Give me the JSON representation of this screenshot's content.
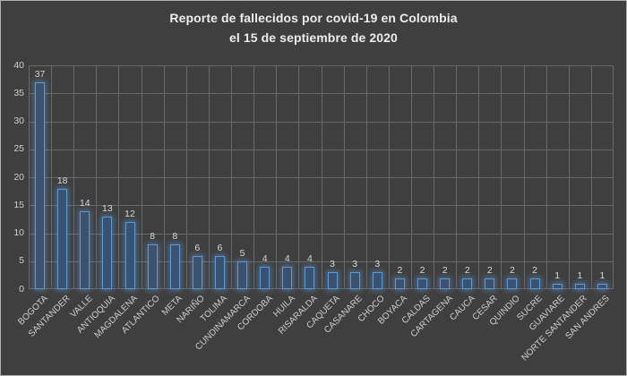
{
  "window": {
    "background_color": "#3f3f3f",
    "frame_border_color": "#b0b0b0"
  },
  "chart_data": {
    "type": "bar",
    "title": "Reporte de fallecidos por covid-19 en Colombia",
    "subtitle": "el 15 de septiembre de 2020",
    "categories": [
      "BOGOTA",
      "SANTANDER",
      "VALLE",
      "ANTIOQUIA",
      "MAGDALENA",
      "ATLANTICO",
      "META",
      "NARIÑO",
      "TOLIMA",
      "CUNDINAMARCA",
      "CORDOBA",
      "HUILA",
      "RISARALDA",
      "CAQUETA",
      "CASANARE",
      "CHOCO",
      "BOYACA",
      "CALDAS",
      "CARTAGENA",
      "CAUCA",
      "CESAR",
      "QUINDIO",
      "SUCRE",
      "GUAVIARE",
      "NORTE SANTANDER",
      "SAN ANDRES"
    ],
    "values": [
      37,
      18,
      14,
      13,
      12,
      8,
      8,
      6,
      6,
      5,
      4,
      4,
      4,
      3,
      3,
      3,
      2,
      2,
      2,
      2,
      2,
      2,
      2,
      1,
      1,
      1
    ],
    "data_labels": "outside-end",
    "xlabel": "",
    "ylabel": "",
    "ylim": [
      0,
      40
    ],
    "yticks": [
      0,
      5,
      10,
      15,
      20,
      25,
      30,
      35,
      40
    ],
    "grid": "both",
    "legend": "none",
    "colors": {
      "bar_fill": "#3a5270",
      "bar_border": "#5b9bd5",
      "bar_glow": "rgba(91,155,213,0.45)",
      "gridline": "#696969",
      "title_text": "#ececec",
      "label_text": "#d9d9d9",
      "axis_text": "#d0d0d0"
    }
  }
}
